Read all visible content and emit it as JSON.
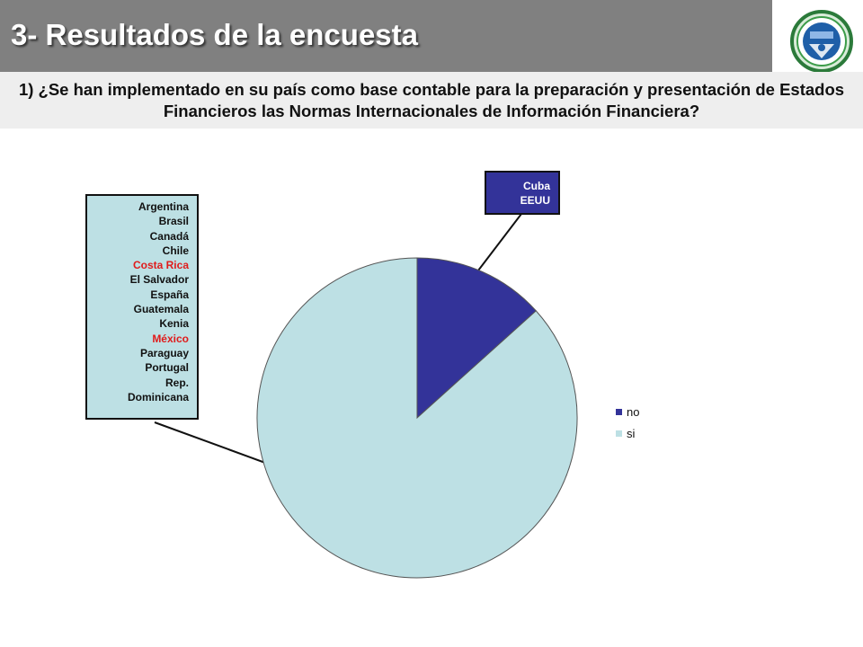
{
  "header": {
    "title": "3- Resultados de la encuesta",
    "question": "1) ¿Se han implementado en su país como base contable para la preparación y presentación de Estados Financieros las Normas Internacionales de Información Financiera?"
  },
  "chart_data": {
    "type": "pie",
    "series": [
      {
        "name": "no",
        "value": 2,
        "color": "#333399",
        "callout": [
          "Cuba",
          "EEUU"
        ]
      },
      {
        "name": "si",
        "value": 13,
        "color": "#bde0e4",
        "callout": [
          "Argentina",
          "Brasil",
          "Canadá",
          "Chile",
          "Costa Rica",
          "El Salvador",
          "España",
          "Guatemala",
          "Kenia",
          "México",
          "Paraguay",
          "Portugal",
          "Rep.",
          "Dominicana"
        ],
        "highlighted": [
          "Costa Rica",
          "México"
        ],
        "highlight_color": "#e01b1b"
      }
    ],
    "legend_position": "right",
    "start_angle": "12 o'clock",
    "direction": "clockwise"
  },
  "logo": {
    "icon": "organization-seal-logo",
    "ring_color": "#2b7a3a",
    "inner_color": "#1f5fa8"
  }
}
